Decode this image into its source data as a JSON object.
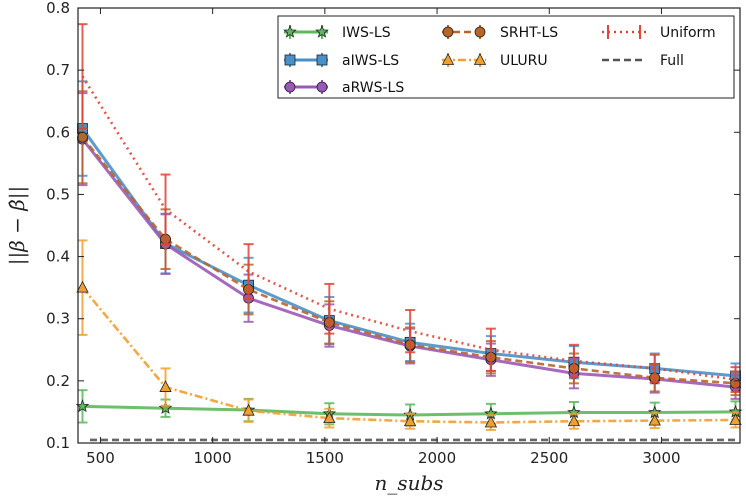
{
  "chart_data": {
    "type": "line",
    "title": "",
    "xlabel": "n_subs",
    "ylabel": "||β − β̂||",
    "xlim": [
      400,
      3350
    ],
    "ylim": [
      0.1,
      0.8
    ],
    "x_ticks": [
      500,
      1000,
      1500,
      2000,
      2500,
      3000
    ],
    "y_ticks": [
      0.1,
      0.2,
      0.3,
      0.4,
      0.5,
      0.6,
      0.7,
      0.8
    ],
    "x_tick_labels": [
      "500",
      "1000",
      "1500",
      "2000",
      "2500",
      "3000"
    ],
    "y_tick_labels": [
      "0.1",
      "0.2",
      "0.3",
      "0.4",
      "0.5",
      "0.6",
      "0.7",
      "0.8"
    ],
    "x": [
      420,
      790,
      1160,
      1520,
      1880,
      2240,
      2610,
      2970,
      3330
    ],
    "legend_position": "top-right",
    "series": [
      {
        "name": "IWS-LS",
        "color": "#5cb85c",
        "marker": "star",
        "linestyle": "solid",
        "values": [
          0.159,
          0.156,
          0.153,
          0.147,
          0.145,
          0.147,
          0.149,
          0.149,
          0.15
        ],
        "errors": [
          0.026,
          0.014,
          0.018,
          0.017,
          0.017,
          0.016,
          0.017,
          0.016,
          0.017
        ]
      },
      {
        "name": "aIWS-LS",
        "color": "#4a90c8",
        "marker": "square",
        "linestyle": "solid",
        "values": [
          0.606,
          0.421,
          0.354,
          0.297,
          0.262,
          0.244,
          0.23,
          0.22,
          0.208
        ],
        "errors": [
          0.076,
          0.048,
          0.044,
          0.038,
          0.03,
          0.028,
          0.026,
          0.024,
          0.02
        ]
      },
      {
        "name": "aRWS-LS",
        "color": "#9b59b6",
        "marker": "circle",
        "linestyle": "solid",
        "values": [
          0.589,
          0.42,
          0.333,
          0.289,
          0.256,
          0.234,
          0.212,
          0.203,
          0.19
        ],
        "errors": [
          0.074,
          0.048,
          0.038,
          0.034,
          0.028,
          0.026,
          0.024,
          0.022,
          0.019
        ]
      },
      {
        "name": "SRHT-LS",
        "color": "#b8652a",
        "marker": "circle",
        "linestyle": "dashed",
        "values": [
          0.592,
          0.428,
          0.347,
          0.294,
          0.258,
          0.238,
          0.22,
          0.205,
          0.196
        ],
        "errors": [
          0.074,
          0.048,
          0.04,
          0.034,
          0.028,
          0.026,
          0.024,
          0.022,
          0.019
        ]
      },
      {
        "name": "ULURU",
        "color": "#f0a030",
        "marker": "triangle",
        "linestyle": "dashdot",
        "values": [
          0.35,
          0.19,
          0.152,
          0.14,
          0.135,
          0.133,
          0.135,
          0.136,
          0.137
        ],
        "errors": [
          0.076,
          0.03,
          0.018,
          0.015,
          0.012,
          0.012,
          0.012,
          0.012,
          0.012
        ]
      },
      {
        "name": "Uniform",
        "color": "#e0453a",
        "marker": "none",
        "linestyle": "dotted",
        "values": [
          0.69,
          0.476,
          0.376,
          0.316,
          0.28,
          0.25,
          0.232,
          0.22,
          0.202
        ],
        "errors": [
          0.084,
          0.056,
          0.044,
          0.04,
          0.034,
          0.034,
          0.026,
          0.022,
          0.02
        ]
      },
      {
        "name": "Full",
        "color": "#555555",
        "marker": "none",
        "linestyle": "dashed",
        "values": [
          0.105,
          0.105,
          0.105,
          0.105,
          0.105,
          0.105,
          0.105,
          0.105,
          0.105
        ],
        "errors": null
      }
    ]
  }
}
